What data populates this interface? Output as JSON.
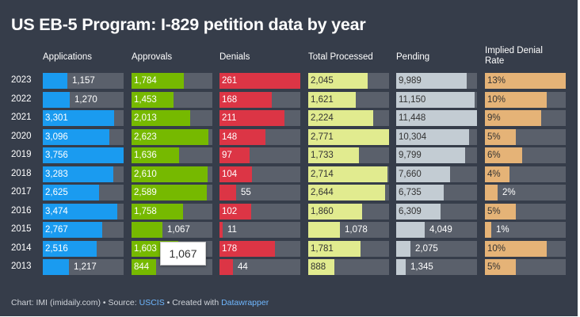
{
  "chart_data": {
    "type": "table",
    "title": "US EB-5 Program: I-829 petition data by year",
    "columns": [
      "Applications",
      "Approvals",
      "Denials",
      "Total Processed",
      "Pending",
      "Implied Denial Rate"
    ],
    "colors": [
      "#1a9bf0",
      "#76b900",
      "#dc3545",
      "#e1eb8f",
      "#c3ccd3",
      "#e5b377"
    ],
    "rows": [
      {
        "year": "2023",
        "values": [
          "1,157",
          "1,784",
          "261",
          "2,045",
          "9,989",
          "13%"
        ]
      },
      {
        "year": "2022",
        "values": [
          "1,270",
          "1,453",
          "168",
          "1,621",
          "11,150",
          "10%"
        ]
      },
      {
        "year": "2021",
        "values": [
          "3,301",
          "2,013",
          "211",
          "2,224",
          "11,448",
          "9%"
        ]
      },
      {
        "year": "2020",
        "values": [
          "3,096",
          "2,623",
          "148",
          "2,771",
          "10,304",
          "5%"
        ]
      },
      {
        "year": "2019",
        "values": [
          "3,756",
          "1,636",
          "97",
          "1,733",
          "9,799",
          "6%"
        ]
      },
      {
        "year": "2018",
        "values": [
          "3,283",
          "2,610",
          "104",
          "2,714",
          "7,660",
          "4%"
        ]
      },
      {
        "year": "2017",
        "values": [
          "2,625",
          "2,589",
          "55",
          "2,644",
          "6,735",
          "2%"
        ]
      },
      {
        "year": "2016",
        "values": [
          "3,474",
          "1,758",
          "102",
          "1,860",
          "6,309",
          "5%"
        ]
      },
      {
        "year": "2015",
        "values": [
          "2,767",
          "1,067",
          "11",
          "1,078",
          "4,049",
          "1%"
        ]
      },
      {
        "year": "2014",
        "values": [
          "2,516",
          "1,603",
          "178",
          "1,781",
          "2,075",
          "10%"
        ]
      },
      {
        "year": "2013",
        "values": [
          "1,217",
          "844",
          "44",
          "888",
          "1,345",
          "5%"
        ]
      }
    ],
    "scale_max": [
      3756,
      2771,
      261,
      2771,
      11448,
      13
    ],
    "tooltip": "1,067"
  },
  "footer": {
    "prefix": "Chart: IMI (imidaily.com) • Source: ",
    "source": "USCIS",
    "middle": " • Created with ",
    "tool": "Datawrapper"
  }
}
